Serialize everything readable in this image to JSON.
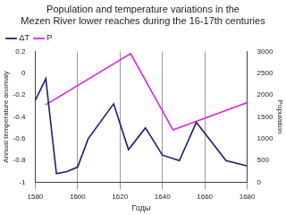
{
  "chart_data": {
    "type": "line",
    "title": [
      "Population and temperature variations in the",
      "Mezen River lower reaches during the 16-17th centuries"
    ],
    "x_label": "Годы",
    "y_label": "Annual temperature anomaly",
    "y2_label": "Population",
    "xlim": [
      1580,
      1680
    ],
    "xticks": [
      1580,
      1600,
      1620,
      1640,
      1660,
      1680
    ],
    "ylim": [
      -1,
      0.2
    ],
    "yticks": [
      -1,
      -0.8,
      -0.6,
      -0.4,
      -0.2,
      0,
      0.2
    ],
    "y2lim": [
      0,
      3000
    ],
    "y2ticks": [
      0,
      500,
      1000,
      1500,
      2000,
      2500,
      3000
    ],
    "grid": true,
    "legend": "upper left",
    "series": [
      {
        "name": "ΔT",
        "color": "#1c1c6e",
        "axis": "y",
        "x": [
          1580,
          1585,
          1590,
          1595,
          1600,
          1605,
          1617,
          1624,
          1632,
          1640,
          1648,
          1656,
          1670,
          1680
        ],
        "values": [
          -0.25,
          -0.05,
          -0.92,
          -0.9,
          -0.86,
          -0.6,
          -0.28,
          -0.7,
          -0.5,
          -0.75,
          -0.8,
          -0.45,
          -0.8,
          -0.85
        ]
      },
      {
        "name": "P",
        "color": "#e020e0",
        "axis": "y2",
        "x": [
          1585,
          1625,
          1645,
          1680
        ],
        "values": [
          1780,
          2950,
          1200,
          1830
        ]
      }
    ]
  }
}
